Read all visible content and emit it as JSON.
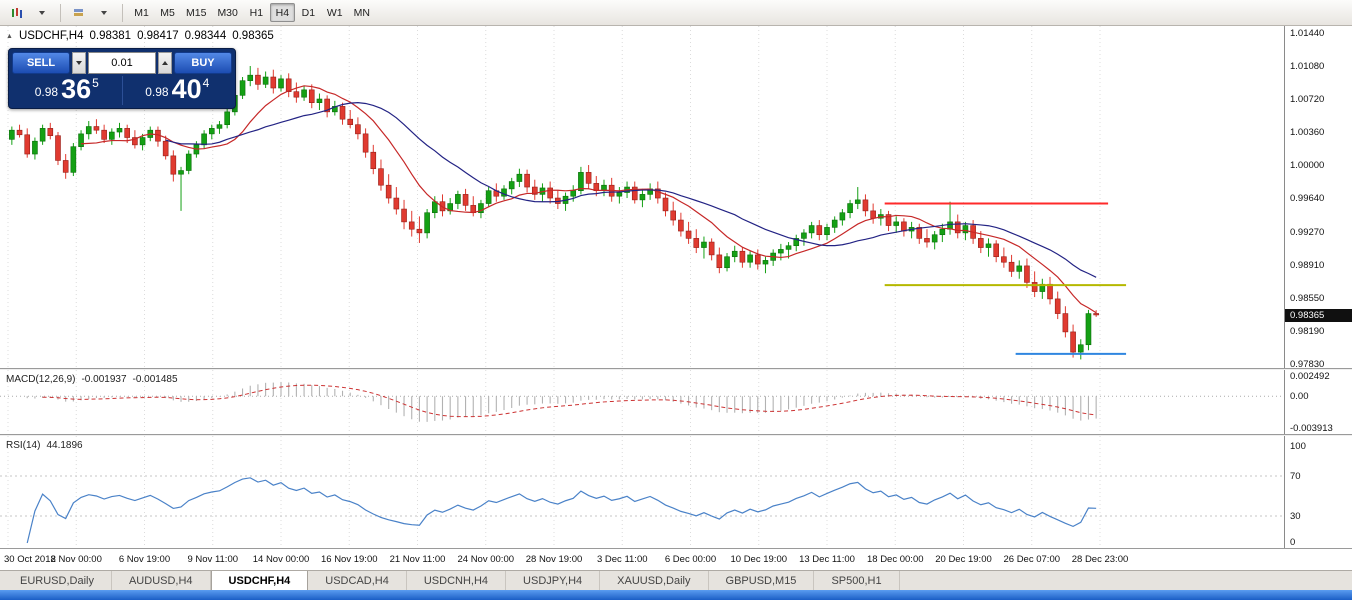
{
  "toolbar": {
    "timeframes": [
      "M1",
      "M5",
      "M15",
      "M30",
      "H1",
      "H4",
      "D1",
      "W1",
      "MN"
    ],
    "active_timeframe": "H4"
  },
  "header": {
    "symbol": "USDCHF,H4",
    "open": "0.98381",
    "high": "0.98417",
    "low": "0.98344",
    "close": "0.98365"
  },
  "trade_panel": {
    "sell_label": "SELL",
    "buy_label": "BUY",
    "volume": "0.01",
    "sell_price_prefix": "0.98",
    "sell_price_big": "36",
    "sell_price_sup": "5",
    "buy_price_prefix": "0.98",
    "buy_price_big": "40",
    "buy_price_sup": "4"
  },
  "price_axis": {
    "labels": [
      "1.01440",
      "1.01080",
      "1.00720",
      "1.00360",
      "1.00000",
      "0.99640",
      "0.99270",
      "0.98910",
      "0.98550",
      "0.98190",
      "0.97830"
    ],
    "current": "0.98365"
  },
  "macd_panel": {
    "name": "MACD(12,26,9)",
    "value_macd": "-0.001937",
    "value_signal": "-0.001485",
    "axis_top": "0.002492",
    "axis_zero": "0.00",
    "axis_bottom": "-0.003913"
  },
  "rsi_panel": {
    "name": "RSI(14)",
    "value": "44.1896",
    "axis": [
      "100",
      "70",
      "30",
      "0"
    ]
  },
  "time_axis": [
    "30 Oct 2018",
    "2 Nov 00:00",
    "6 Nov 19:00",
    "9 Nov 11:00",
    "14 Nov 00:00",
    "16 Nov 19:00",
    "21 Nov 11:00",
    "24 Nov 00:00",
    "28 Nov 19:00",
    "3 Dec 11:00",
    "6 Dec 00:00",
    "10 Dec 19:00",
    "13 Dec 11:00",
    "18 Dec 00:00",
    "20 Dec 19:00",
    "26 Dec 07:00",
    "28 Dec 23:00"
  ],
  "tabs": {
    "items": [
      "EURUSD,Daily",
      "AUDUSD,H4",
      "USDCHF,H4",
      "USDCAD,H4",
      "USDCNH,H4",
      "USDJPY,H4",
      "XAUUSD,Daily",
      "GBPUSD,M15",
      "SP500,H1"
    ],
    "active": "USDCHF,H4"
  },
  "chart_data": {
    "type": "candlestick",
    "symbol": "USDCHF",
    "timeframe": "H4",
    "price_scale": {
      "top": 1.0144,
      "bottom": 0.9783
    },
    "up_color": "#14a014",
    "down_color": "#e03a30",
    "candles": [
      [
        1.0028,
        1.0042,
        1.0022,
        1.0038
      ],
      [
        1.0038,
        1.0044,
        1.003,
        1.0033
      ],
      [
        1.0033,
        1.004,
        1.0008,
        1.0012
      ],
      [
        1.0012,
        1.003,
        1.0006,
        1.0026
      ],
      [
        1.0026,
        1.0044,
        1.0022,
        1.004
      ],
      [
        1.004,
        1.0046,
        1.0028,
        1.0032
      ],
      [
        1.0032,
        1.0036,
        1.0,
        1.0005
      ],
      [
        1.0005,
        1.0012,
        0.9985,
        0.9992
      ],
      [
        0.9992,
        1.0024,
        0.9988,
        1.002
      ],
      [
        1.002,
        1.0038,
        1.0016,
        1.0034
      ],
      [
        1.0034,
        1.0048,
        1.0028,
        1.0042
      ],
      [
        1.0042,
        1.005,
        1.0034,
        1.0038
      ],
      [
        1.0038,
        1.0044,
        1.0024,
        1.0028
      ],
      [
        1.0028,
        1.004,
        1.0022,
        1.0036
      ],
      [
        1.0036,
        1.0046,
        1.003,
        1.004
      ],
      [
        1.004,
        1.0044,
        1.0024,
        1.003
      ],
      [
        1.003,
        1.0038,
        1.0018,
        1.0022
      ],
      [
        1.0022,
        1.0034,
        1.0016,
        1.003
      ],
      [
        1.003,
        1.0042,
        1.0026,
        1.0038
      ],
      [
        1.0038,
        1.0042,
        1.002,
        1.0026
      ],
      [
        1.0026,
        1.0032,
        1.0006,
        1.001
      ],
      [
        1.001,
        1.0016,
        0.9982,
        0.999
      ],
      [
        0.999,
        0.9998,
        0.995,
        0.9994
      ],
      [
        0.9994,
        1.0016,
        0.999,
        1.0012
      ],
      [
        1.0012,
        1.0026,
        1.0008,
        1.0022
      ],
      [
        1.0022,
        1.0038,
        1.0018,
        1.0034
      ],
      [
        1.0034,
        1.0044,
        1.0028,
        1.004
      ],
      [
        1.004,
        1.0048,
        1.0034,
        1.0044
      ],
      [
        1.0044,
        1.0062,
        1.004,
        1.0058
      ],
      [
        1.0058,
        1.008,
        1.0054,
        1.0076
      ],
      [
        1.0076,
        1.0096,
        1.0072,
        1.0092
      ],
      [
        1.0092,
        1.0108,
        1.0086,
        1.0098
      ],
      [
        1.0098,
        1.0106,
        1.0082,
        1.0088
      ],
      [
        1.0088,
        1.0102,
        1.0084,
        1.0096
      ],
      [
        1.0096,
        1.0104,
        1.0078,
        1.0084
      ],
      [
        1.0084,
        1.0098,
        1.008,
        1.0094
      ],
      [
        1.0094,
        1.01,
        1.0074,
        1.008
      ],
      [
        1.008,
        1.009,
        1.0068,
        1.0074
      ],
      [
        1.0074,
        1.0086,
        1.007,
        1.0082
      ],
      [
        1.0082,
        1.0088,
        1.0062,
        1.0068
      ],
      [
        1.0068,
        1.0078,
        1.006,
        1.0072
      ],
      [
        1.0072,
        1.0076,
        1.0052,
        1.0058
      ],
      [
        1.0058,
        1.007,
        1.0054,
        1.0064
      ],
      [
        1.0064,
        1.0068,
        1.0044,
        1.005
      ],
      [
        1.005,
        1.006,
        1.004,
        1.0044
      ],
      [
        1.0044,
        1.0052,
        1.0028,
        1.0034
      ],
      [
        1.0034,
        1.004,
        1.0008,
        1.0014
      ],
      [
        1.0014,
        1.0022,
        0.999,
        0.9996
      ],
      [
        0.9996,
        1.0006,
        0.9972,
        0.9978
      ],
      [
        0.9978,
        0.999,
        0.9958,
        0.9964
      ],
      [
        0.9964,
        0.9976,
        0.9946,
        0.9952
      ],
      [
        0.9952,
        0.9962,
        0.993,
        0.9938
      ],
      [
        0.9938,
        0.995,
        0.9922,
        0.993
      ],
      [
        0.993,
        0.9944,
        0.9915,
        0.9926
      ],
      [
        0.9926,
        0.9952,
        0.992,
        0.9948
      ],
      [
        0.9948,
        0.9966,
        0.9942,
        0.996
      ],
      [
        0.996,
        0.9968,
        0.9944,
        0.995
      ],
      [
        0.995,
        0.9964,
        0.9946,
        0.9958
      ],
      [
        0.9958,
        0.9972,
        0.9952,
        0.9968
      ],
      [
        0.9968,
        0.9974,
        0.995,
        0.9956
      ],
      [
        0.9956,
        0.9966,
        0.9944,
        0.9948
      ],
      [
        0.9948,
        0.9962,
        0.9942,
        0.9958
      ],
      [
        0.9958,
        0.9976,
        0.9954,
        0.9972
      ],
      [
        0.9972,
        0.998,
        0.996,
        0.9966
      ],
      [
        0.9966,
        0.9978,
        0.9962,
        0.9974
      ],
      [
        0.9974,
        0.9986,
        0.9968,
        0.9982
      ],
      [
        0.9982,
        0.9996,
        0.9976,
        0.999
      ],
      [
        0.999,
        0.9995,
        0.997,
        0.9976
      ],
      [
        0.9976,
        0.9984,
        0.9962,
        0.9968
      ],
      [
        0.9968,
        0.998,
        0.996,
        0.9975
      ],
      [
        0.9975,
        0.9982,
        0.9958,
        0.9964
      ],
      [
        0.9964,
        0.9972,
        0.9952,
        0.9958
      ],
      [
        0.9958,
        0.997,
        0.995,
        0.9966
      ],
      [
        0.9966,
        0.9978,
        0.996,
        0.9972
      ],
      [
        0.9972,
        0.9998,
        0.9968,
        0.9992
      ],
      [
        0.9992,
        1.0,
        0.9974,
        0.998
      ],
      [
        0.998,
        0.9988,
        0.9966,
        0.9972
      ],
      [
        0.9972,
        0.9984,
        0.9966,
        0.9978
      ],
      [
        0.9978,
        0.9986,
        0.996,
        0.9966
      ],
      [
        0.9966,
        0.9976,
        0.9958,
        0.997
      ],
      [
        0.997,
        0.9982,
        0.9964,
        0.9976
      ],
      [
        0.9976,
        0.9982,
        0.9958,
        0.9962
      ],
      [
        0.9962,
        0.9974,
        0.9954,
        0.9968
      ],
      [
        0.9968,
        0.998,
        0.9962,
        0.9974
      ],
      [
        0.9974,
        0.9982,
        0.9958,
        0.9964
      ],
      [
        0.9964,
        0.997,
        0.9944,
        0.995
      ],
      [
        0.995,
        0.996,
        0.9934,
        0.994
      ],
      [
        0.994,
        0.9948,
        0.9922,
        0.9928
      ],
      [
        0.9928,
        0.9938,
        0.9914,
        0.992
      ],
      [
        0.992,
        0.993,
        0.9904,
        0.991
      ],
      [
        0.991,
        0.9922,
        0.9898,
        0.9916
      ],
      [
        0.9916,
        0.992,
        0.9896,
        0.9902
      ],
      [
        0.9902,
        0.991,
        0.9882,
        0.9888
      ],
      [
        0.9888,
        0.9904,
        0.9884,
        0.99
      ],
      [
        0.99,
        0.9912,
        0.9894,
        0.9906
      ],
      [
        0.9906,
        0.991,
        0.9888,
        0.9894
      ],
      [
        0.9894,
        0.9906,
        0.9888,
        0.9902
      ],
      [
        0.9902,
        0.9908,
        0.9886,
        0.9892
      ],
      [
        0.9892,
        0.99,
        0.9882,
        0.9896
      ],
      [
        0.9896,
        0.9908,
        0.989,
        0.9904
      ],
      [
        0.9904,
        0.9914,
        0.9896,
        0.9908
      ],
      [
        0.9908,
        0.9916,
        0.9898,
        0.9912
      ],
      [
        0.9912,
        0.9924,
        0.9906,
        0.992
      ],
      [
        0.992,
        0.993,
        0.9912,
        0.9926
      ],
      [
        0.9926,
        0.9938,
        0.992,
        0.9934
      ],
      [
        0.9934,
        0.994,
        0.9918,
        0.9924
      ],
      [
        0.9924,
        0.9936,
        0.9918,
        0.9932
      ],
      [
        0.9932,
        0.9944,
        0.9926,
        0.994
      ],
      [
        0.994,
        0.9952,
        0.9934,
        0.9948
      ],
      [
        0.9948,
        0.9962,
        0.9942,
        0.9958
      ],
      [
        0.9958,
        0.9976,
        0.9952,
        0.9962
      ],
      [
        0.9962,
        0.9968,
        0.9944,
        0.995
      ],
      [
        0.995,
        0.9958,
        0.9936,
        0.9942
      ],
      [
        0.9942,
        0.9952,
        0.9934,
        0.9946
      ],
      [
        0.9946,
        0.995,
        0.9928,
        0.9934
      ],
      [
        0.9934,
        0.9944,
        0.9926,
        0.9938
      ],
      [
        0.9938,
        0.9942,
        0.9922,
        0.9928
      ],
      [
        0.9928,
        0.9938,
        0.992,
        0.9932
      ],
      [
        0.9932,
        0.9936,
        0.9914,
        0.992
      ],
      [
        0.992,
        0.993,
        0.991,
        0.9916
      ],
      [
        0.9916,
        0.9928,
        0.9908,
        0.9924
      ],
      [
        0.9924,
        0.9936,
        0.9916,
        0.993
      ],
      [
        0.993,
        0.996,
        0.9924,
        0.9938
      ],
      [
        0.9938,
        0.9946,
        0.992,
        0.9926
      ],
      [
        0.9926,
        0.9938,
        0.9918,
        0.9934
      ],
      [
        0.9934,
        0.994,
        0.9914,
        0.992
      ],
      [
        0.992,
        0.9928,
        0.9904,
        0.991
      ],
      [
        0.991,
        0.992,
        0.99,
        0.9914
      ],
      [
        0.9914,
        0.9918,
        0.9894,
        0.99
      ],
      [
        0.99,
        0.991,
        0.9888,
        0.9894
      ],
      [
        0.9894,
        0.9902,
        0.9878,
        0.9884
      ],
      [
        0.9884,
        0.9896,
        0.9876,
        0.989
      ],
      [
        0.989,
        0.9898,
        0.9866,
        0.9872
      ],
      [
        0.9872,
        0.9884,
        0.9856,
        0.9862
      ],
      [
        0.9862,
        0.9876,
        0.9854,
        0.987
      ],
      [
        0.987,
        0.9878,
        0.9848,
        0.9854
      ],
      [
        0.9854,
        0.9862,
        0.9832,
        0.9838
      ],
      [
        0.9838,
        0.9846,
        0.9812,
        0.9818
      ],
      [
        0.9818,
        0.9826,
        0.979,
        0.9796
      ],
      [
        0.9796,
        0.981,
        0.9788,
        0.9804
      ],
      [
        0.9804,
        0.9842,
        0.9798,
        0.9838
      ],
      [
        0.98381,
        0.98417,
        0.98344,
        0.98365
      ]
    ],
    "overlays": {
      "ma_fast_period": 10,
      "ma_slow_period": 21,
      "ma_fast_color": "#c62828",
      "ma_slow_color": "#232384",
      "hlines": [
        {
          "color": "#ff2a2a",
          "price": 0.9958,
          "x1": 0.689,
          "x2": 0.863
        },
        {
          "color": "#b5b800",
          "price": 0.9869,
          "x1": 0.689,
          "x2": 0.877
        },
        {
          "color": "#2f86e0",
          "price": 0.9794,
          "x1": 0.791,
          "x2": 0.877
        }
      ]
    },
    "indicators": {
      "macd": {
        "fast": 12,
        "slow": 26,
        "signal": 9,
        "scale_top": 0.002492,
        "scale_bottom": -0.003913
      },
      "rsi": {
        "period": 14,
        "levels": [
          70,
          30
        ]
      }
    }
  }
}
